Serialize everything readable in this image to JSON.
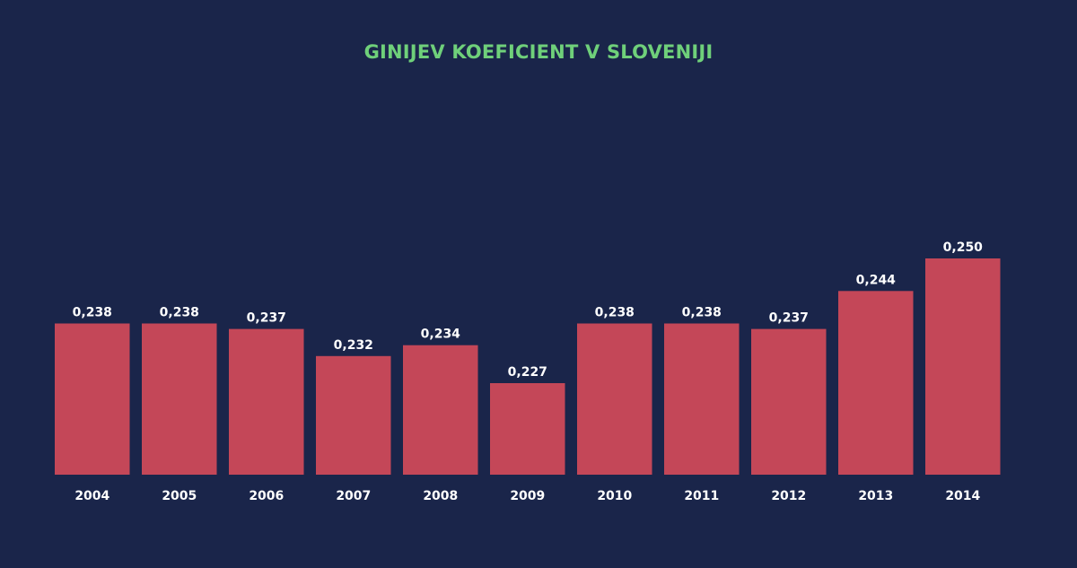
{
  "chart_data": {
    "type": "bar",
    "title": "GINIJEV KOEFICIENT V SLOVENIJI",
    "xlabel": "",
    "ylabel": "",
    "categories": [
      "2004",
      "2005",
      "2006",
      "2007",
      "2008",
      "2009",
      "2010",
      "2011",
      "2012",
      "2013",
      "2014"
    ],
    "values": [
      0.238,
      0.238,
      0.237,
      0.232,
      0.234,
      0.227,
      0.238,
      0.238,
      0.237,
      0.244,
      0.25
    ],
    "data_labels": [
      "0,238",
      "0,238",
      "0,237",
      "0,232",
      "0,234",
      "0,227",
      "0,238",
      "0,238",
      "0,237",
      "0,244",
      "0,250"
    ],
    "ylim": [
      0.21,
      0.25
    ],
    "grid": false,
    "legend": "none",
    "colors": {
      "background": "#1a254a",
      "bar": "#c44758",
      "title": "#6fd07a",
      "text": "#ffffff"
    }
  }
}
